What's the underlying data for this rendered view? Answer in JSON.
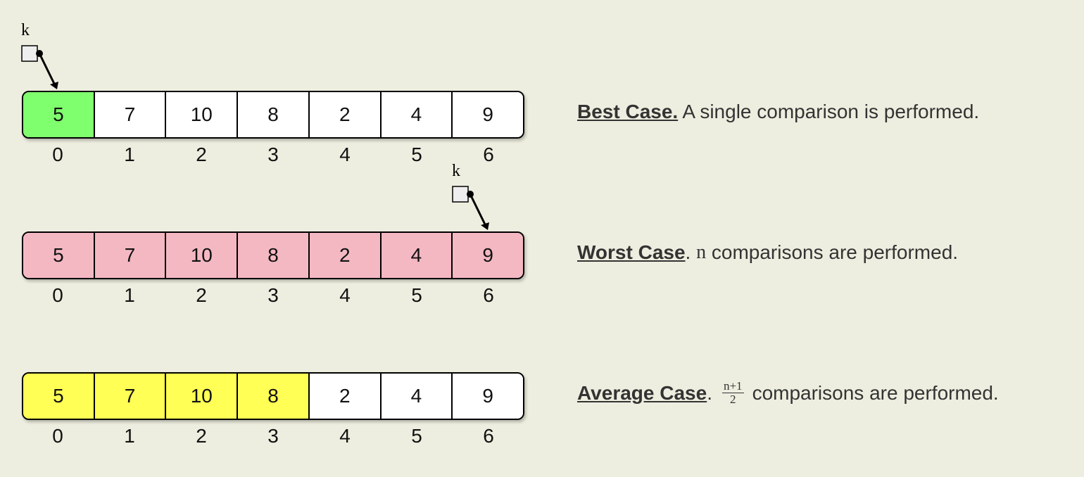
{
  "colors": {
    "background": "#eeeee0",
    "best_highlight": "#80ff6e",
    "worst_highlight": "#f4b8c3",
    "average_highlight": "#ffff55",
    "default_cell": "#ffffff"
  },
  "rows": [
    {
      "id": "best",
      "values": [
        "5",
        "7",
        "10",
        "8",
        "2",
        "4",
        "9"
      ],
      "indices": [
        "0",
        "1",
        "2",
        "3",
        "4",
        "5",
        "6"
      ],
      "highlighted": [
        0
      ],
      "highlight_color": "#80ff6e",
      "pointer": {
        "label": "k",
        "target_index": 0
      },
      "description": {
        "heading": "Best Case.",
        "text": " A single comparison is performed."
      }
    },
    {
      "id": "worst",
      "values": [
        "5",
        "7",
        "10",
        "8",
        "2",
        "4",
        "9"
      ],
      "indices": [
        "0",
        "1",
        "2",
        "3",
        "4",
        "5",
        "6"
      ],
      "highlighted": [
        0,
        1,
        2,
        3,
        4,
        5,
        6
      ],
      "highlight_color": "#f4b8c3",
      "pointer": {
        "label": "k",
        "target_index": 6
      },
      "description": {
        "heading": "Worst Case",
        "dot": ". ",
        "var": "n",
        "text": " comparisons are performed."
      }
    },
    {
      "id": "average",
      "values": [
        "5",
        "7",
        "10",
        "8",
        "2",
        "4",
        "9"
      ],
      "indices": [
        "0",
        "1",
        "2",
        "3",
        "4",
        "5",
        "6"
      ],
      "highlighted": [
        0,
        1,
        2,
        3
      ],
      "highlight_color": "#ffff55",
      "pointer": null,
      "description": {
        "heading": "Average Case",
        "dot": ".",
        "frac_num": "n+1",
        "frac_den": "2",
        "text": "comparisons are performed."
      }
    }
  ]
}
